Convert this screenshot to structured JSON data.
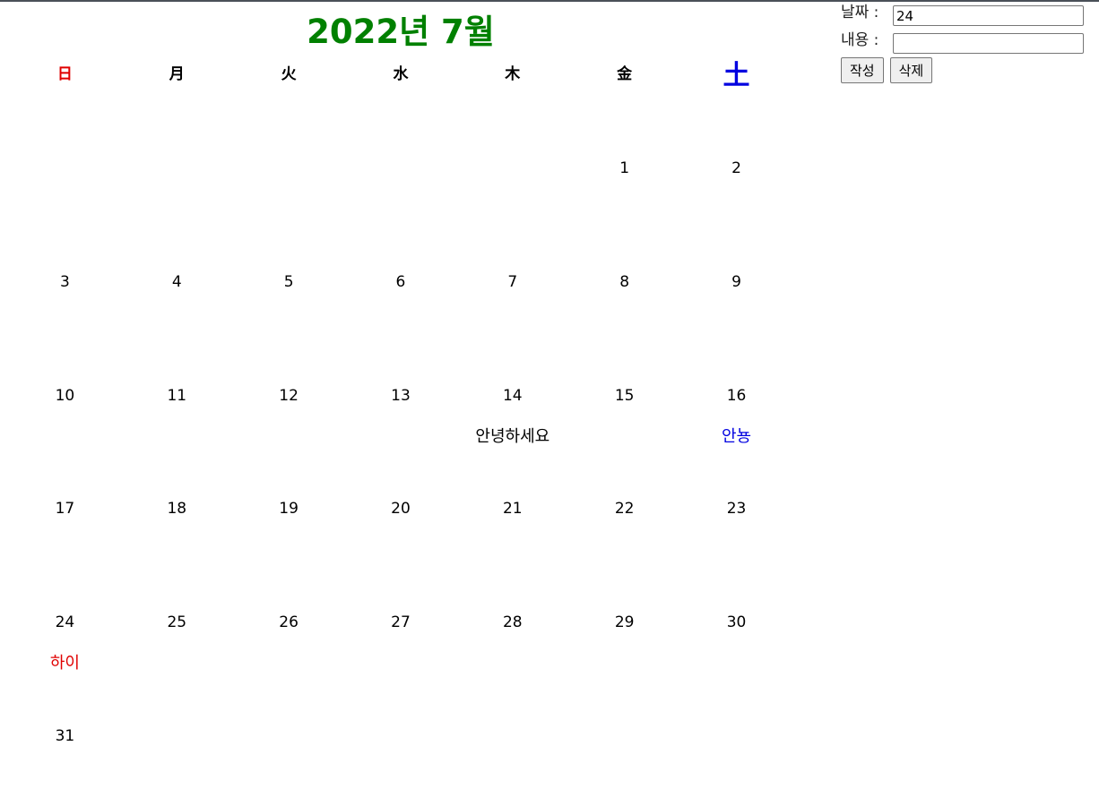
{
  "calendar": {
    "title": "2022년 7월",
    "weekdays": [
      "日",
      "月",
      "火",
      "水",
      "木",
      "金",
      "土"
    ],
    "weeks": [
      [
        {
          "d": ""
        },
        {
          "d": ""
        },
        {
          "d": ""
        },
        {
          "d": ""
        },
        {
          "d": ""
        },
        {
          "d": "1"
        },
        {
          "d": "2"
        }
      ],
      [
        {
          "d": "3"
        },
        {
          "d": "4"
        },
        {
          "d": "5"
        },
        {
          "d": "6"
        },
        {
          "d": "7"
        },
        {
          "d": "8"
        },
        {
          "d": "9"
        }
      ],
      [
        {
          "d": "10"
        },
        {
          "d": "11"
        },
        {
          "d": "12"
        },
        {
          "d": "13"
        },
        {
          "d": "14",
          "memo": "안녕하세요"
        },
        {
          "d": "15"
        },
        {
          "d": "16",
          "memo": "안뇽"
        }
      ],
      [
        {
          "d": "17"
        },
        {
          "d": "18"
        },
        {
          "d": "19"
        },
        {
          "d": "20"
        },
        {
          "d": "21"
        },
        {
          "d": "22"
        },
        {
          "d": "23"
        }
      ],
      [
        {
          "d": "24",
          "memo": "하이"
        },
        {
          "d": "25"
        },
        {
          "d": "26"
        },
        {
          "d": "27"
        },
        {
          "d": "28"
        },
        {
          "d": "29"
        },
        {
          "d": "30"
        }
      ],
      [
        {
          "d": "31"
        },
        {
          "d": ""
        },
        {
          "d": ""
        },
        {
          "d": ""
        },
        {
          "d": ""
        },
        {
          "d": ""
        },
        {
          "d": ""
        }
      ]
    ]
  },
  "form": {
    "date_label": "날짜 :",
    "date_value": "24",
    "content_label": "내용 :",
    "content_value": "",
    "write_button": "작성",
    "delete_button": "삭제"
  },
  "colors": {
    "title": "#008000",
    "sunday": "#e00000",
    "saturday": "#0000e0"
  }
}
